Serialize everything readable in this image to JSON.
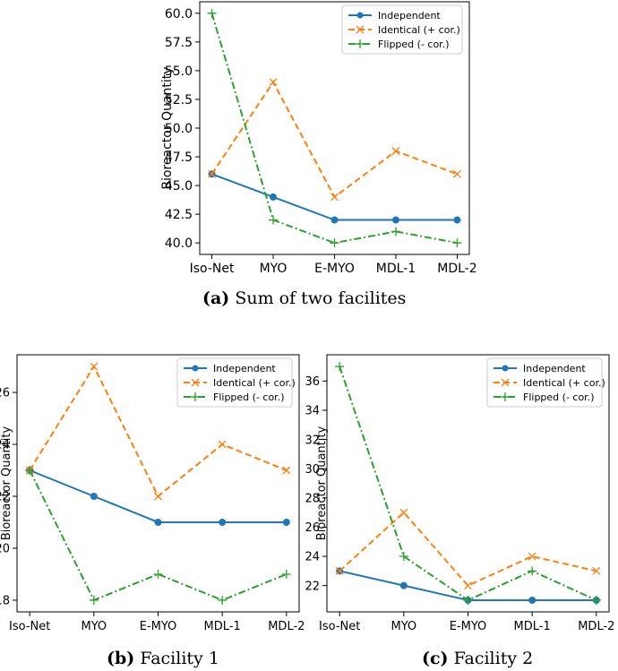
{
  "chart_data": [
    {
      "type": "line",
      "caption": {
        "label": "(a)",
        "text": "Sum of two facilites"
      },
      "ylabel": "Bioreactor Quantity",
      "xlabel": "",
      "categories": [
        "Iso-Net",
        "MYO",
        "E-MYO",
        "MDL-1",
        "MDL-2"
      ],
      "ylim": [
        39.0,
        61.0
      ],
      "yticks": [
        40.0,
        42.5,
        45.0,
        47.5,
        50.0,
        52.5,
        55.0,
        57.5,
        60.0
      ],
      "ytick_labels": [
        "40.0",
        "42.5",
        "45.0",
        "47.5",
        "50.0",
        "52.5",
        "55.0",
        "57.5",
        "60.0"
      ],
      "legend_position": "top-right",
      "grid": false,
      "series": [
        {
          "name": "Independent",
          "values": [
            46,
            44,
            42,
            42,
            42
          ],
          "color": "#1f77b4",
          "marker": "circle",
          "style": "solid"
        },
        {
          "name": "Identical (+ cor.)",
          "values": [
            46,
            54,
            44,
            48,
            46
          ],
          "color": "#ff7f0e",
          "marker": "x",
          "style": "dashed"
        },
        {
          "name": "Flipped (- cor.)",
          "values": [
            60,
            42,
            40,
            41,
            40
          ],
          "color": "#2ca02c",
          "marker": "plus",
          "style": "dashdot"
        }
      ]
    },
    {
      "type": "line",
      "caption": {
        "label": "(b)",
        "text": "Facility 1"
      },
      "ylabel": "Bioreactor Quantity",
      "xlabel": "",
      "categories": [
        "Iso-Net",
        "MYO",
        "E-MYO",
        "MDL-1",
        "MDL-2"
      ],
      "ylim": [
        17.55,
        27.45
      ],
      "yticks": [
        18,
        20,
        22,
        24,
        26
      ],
      "ytick_labels": [
        "18",
        "20",
        "22",
        "24",
        "26"
      ],
      "legend_position": "top-right",
      "grid": false,
      "series": [
        {
          "name": "Independent",
          "values": [
            23,
            22,
            21,
            21,
            21
          ],
          "color": "#1f77b4",
          "marker": "circle",
          "style": "solid"
        },
        {
          "name": "Identical (+ cor.)",
          "values": [
            23,
            27,
            22,
            24,
            23
          ],
          "color": "#ff7f0e",
          "marker": "x",
          "style": "dashed"
        },
        {
          "name": "Flipped (- cor.)",
          "values": [
            23,
            18,
            19,
            18,
            19
          ],
          "color": "#2ca02c",
          "marker": "plus",
          "style": "dashdot"
        }
      ]
    },
    {
      "type": "line",
      "caption": {
        "label": "(c)",
        "text": "Facility 2"
      },
      "ylabel": "Bioreactor Quantity",
      "xlabel": "",
      "categories": [
        "Iso-Net",
        "MYO",
        "E-MYO",
        "MDL-1",
        "MDL-2"
      ],
      "ylim": [
        20.2,
        37.8
      ],
      "yticks": [
        22,
        24,
        26,
        28,
        30,
        32,
        34,
        36
      ],
      "ytick_labels": [
        "22",
        "24",
        "26",
        "28",
        "30",
        "32",
        "34",
        "36"
      ],
      "legend_position": "top-right",
      "grid": false,
      "series": [
        {
          "name": "Independent",
          "values": [
            23,
            22,
            21,
            21,
            21
          ],
          "color": "#1f77b4",
          "marker": "circle",
          "style": "solid"
        },
        {
          "name": "Identical (+ cor.)",
          "values": [
            23,
            27,
            22,
            24,
            23
          ],
          "color": "#ff7f0e",
          "marker": "x",
          "style": "dashed"
        },
        {
          "name": "Flipped (- cor.)",
          "values": [
            37,
            24,
            21,
            23,
            21
          ],
          "color": "#2ca02c",
          "marker": "plus",
          "style": "dashdot"
        }
      ]
    }
  ]
}
